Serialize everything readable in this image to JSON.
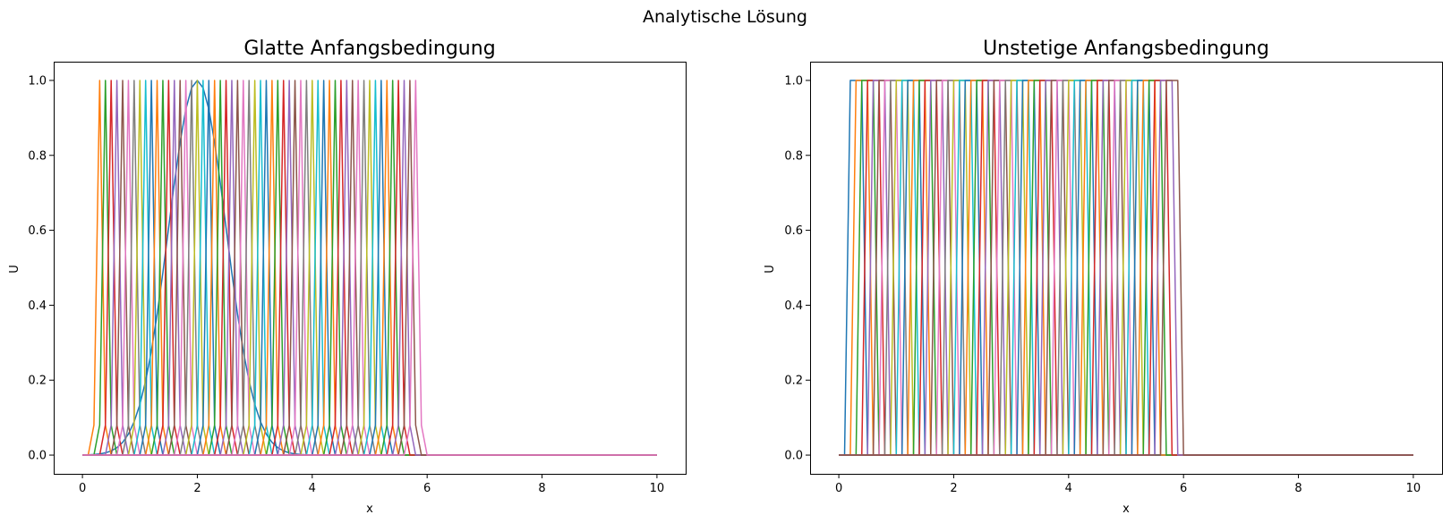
{
  "figure": {
    "title": "Analytische Lösung"
  },
  "colors": [
    "#1f77b4",
    "#ff7f0e",
    "#2ca02c",
    "#d62728",
    "#9467bd",
    "#8c564b",
    "#e377c2",
    "#7f7f7f",
    "#bcbd22",
    "#17becf"
  ],
  "chart_data": [
    {
      "type": "line",
      "title": "Glatte Anfangsbedingung",
      "xlabel": "x",
      "ylabel": "U",
      "xlim": [
        -0.5,
        10.5
      ],
      "ylim": [
        -0.05,
        1.05
      ],
      "xticks": [
        0,
        2,
        4,
        6,
        8,
        10
      ],
      "yticks": [
        0.0,
        0.2,
        0.4,
        0.6,
        0.8,
        1.0
      ],
      "grid": false,
      "legend": false,
      "x_domain": [
        0,
        10
      ],
      "n_grid_points": 101,
      "initial_condition": {
        "shape": "gaussian",
        "center": 2.0,
        "sigma": 0.5,
        "peak": 1.0
      },
      "pulse_centers": [
        0.3,
        0.4,
        0.5,
        0.6,
        0.7,
        0.8,
        0.9,
        1.0,
        1.1,
        1.2,
        1.3,
        1.4,
        1.5,
        1.6,
        1.7,
        1.8,
        1.9,
        2.0,
        2.1,
        2.2,
        2.3,
        2.4,
        2.5,
        2.6,
        2.7,
        2.8,
        2.9,
        3.0,
        3.1,
        3.2,
        3.3,
        3.4,
        3.5,
        3.6,
        3.7,
        3.8,
        3.9,
        4.0,
        4.1,
        4.2,
        4.3,
        4.4,
        4.5,
        4.6,
        4.7,
        4.8,
        4.9,
        5.0,
        5.1,
        5.2,
        5.3,
        5.4,
        5.5,
        5.6,
        5.7,
        5.8
      ],
      "pulse_shape": {
        "peak": 1.0,
        "side_value": 0.08
      }
    },
    {
      "type": "line",
      "title": "Unstetige Anfangsbedingung",
      "xlabel": "x",
      "ylabel": "U",
      "xlim": [
        -0.5,
        10.5
      ],
      "ylim": [
        -0.05,
        1.05
      ],
      "xticks": [
        0,
        2,
        4,
        6,
        8,
        10
      ],
      "yticks": [
        0.0,
        0.2,
        0.4,
        0.6,
        0.8,
        1.0
      ],
      "grid": false,
      "legend": false,
      "x_domain": [
        0,
        10
      ],
      "n_grid_points": 101,
      "box_starts": [
        0.2,
        0.3,
        0.4,
        0.5,
        0.6,
        0.7,
        0.8,
        0.9,
        1.0,
        1.1,
        1.2,
        1.3,
        1.4,
        1.5,
        1.6,
        1.7,
        1.8,
        1.9,
        2.0,
        2.1,
        2.2,
        2.3,
        2.4,
        2.5,
        2.6,
        2.7,
        2.8,
        2.9,
        3.0,
        3.1,
        3.2,
        3.3,
        3.4,
        3.5,
        3.6,
        3.7,
        3.8,
        3.9,
        4.0,
        4.1,
        4.2,
        4.3,
        4.4,
        4.5,
        4.6,
        4.7,
        4.8,
        4.9,
        5.0,
        5.1,
        5.2,
        5.3,
        5.4,
        5.5,
        5.6,
        5.7
      ],
      "box_width": 0.2,
      "box_height": 1.0
    }
  ]
}
